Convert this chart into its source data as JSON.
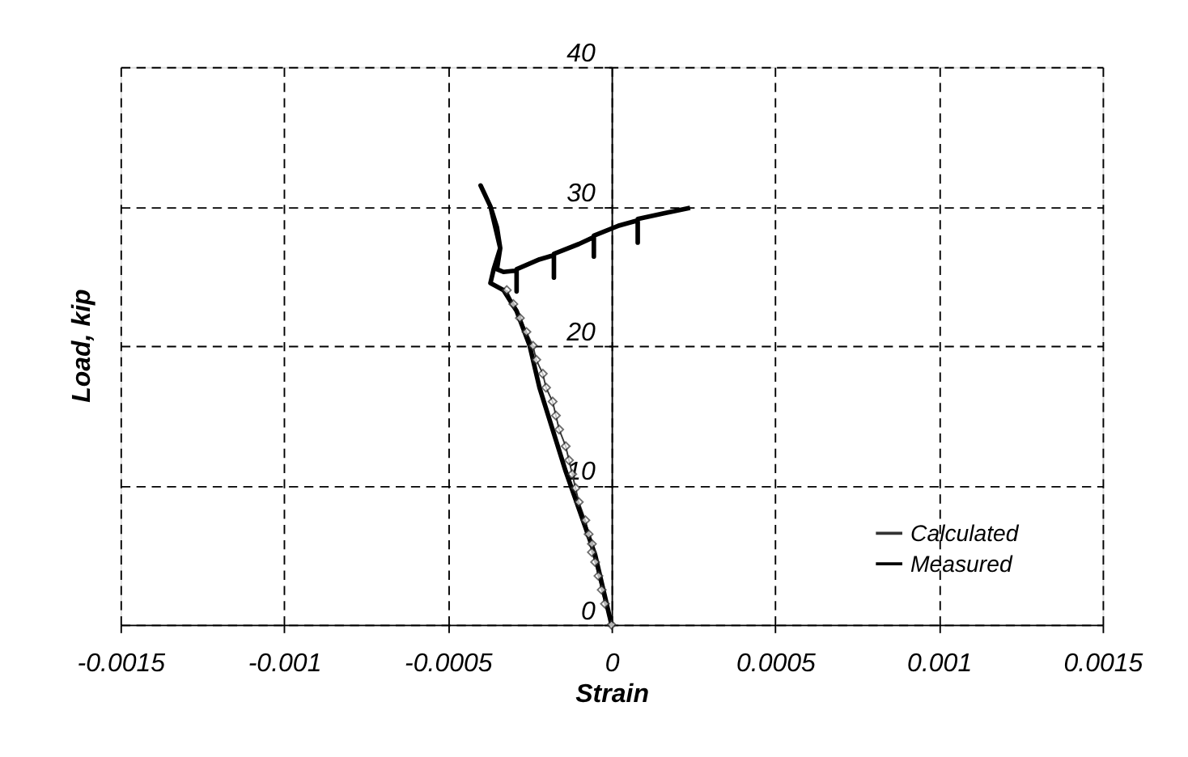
{
  "chart_data": {
    "type": "line",
    "xlabel": "Strain",
    "ylabel": "Load, kip",
    "xlim": [
      -0.0015,
      0.0015
    ],
    "xticks": [
      -0.0015,
      -0.001,
      -0.0005,
      0,
      0.0005,
      0.001,
      0.0015
    ],
    "ylim": [
      0,
      40
    ],
    "yticks": [
      0,
      10,
      20,
      30,
      40
    ],
    "grid": true,
    "legend": "bottom right",
    "series": [
      {
        "name": "Calculated",
        "color": "#333333",
        "marker": "diamond",
        "x": [
          0,
          -2e-05,
          -3e-05,
          -4e-05,
          -5e-05,
          -6e-05,
          -6e-05,
          -7e-05,
          -8e-05,
          -0.0001,
          -0.00011,
          -0.00012,
          -0.00013,
          -0.00014,
          -0.00016,
          -0.00017,
          -0.00018,
          -0.0002,
          -0.00021,
          -0.00023,
          -0.00024,
          -0.00026,
          -0.00028,
          -0.0003,
          -0.00032
        ],
        "values": [
          0,
          1.5,
          2.5,
          3.5,
          4.5,
          5.2,
          5.8,
          6.5,
          7.5,
          8.8,
          9.8,
          10.8,
          11.8,
          12.8,
          14,
          15,
          16,
          17,
          18,
          19,
          20,
          21,
          22,
          23,
          24
        ]
      },
      {
        "name": "Measured",
        "color": "#000000",
        "marker": "none",
        "x": [
          0,
          -2e-05,
          -5e-05,
          -8e-05,
          -0.00011,
          -0.00014,
          -0.00018,
          -0.00022,
          -0.00025,
          -0.00029,
          -0.00033,
          -0.00037,
          -0.00036,
          -0.00034,
          -0.00035,
          -0.00037,
          -0.0004,
          -0.00037,
          -0.00034,
          -0.00035,
          -0.00033,
          -0.00029,
          -0.00029,
          -0.00029,
          -0.00022,
          -0.000176,
          -0.000176,
          -0.000176,
          -0.0001,
          -5.4e-05,
          -5.4e-05,
          -5.4e-05,
          2e-05,
          8e-05,
          8e-05,
          8e-05,
          0.00016,
          0.00024
        ],
        "values": [
          0,
          2,
          5,
          7,
          9,
          11,
          14,
          17,
          20,
          22.5,
          24,
          24.5,
          25.5,
          27,
          28.5,
          30,
          31.5,
          30,
          27,
          25.5,
          25.3,
          25.4,
          23.9,
          25.5,
          26.2,
          26.5,
          24.9,
          26.6,
          27.3,
          27.8,
          26.4,
          27.9,
          28.6,
          29,
          27.4,
          29.1,
          29.5,
          29.9
        ]
      }
    ]
  }
}
